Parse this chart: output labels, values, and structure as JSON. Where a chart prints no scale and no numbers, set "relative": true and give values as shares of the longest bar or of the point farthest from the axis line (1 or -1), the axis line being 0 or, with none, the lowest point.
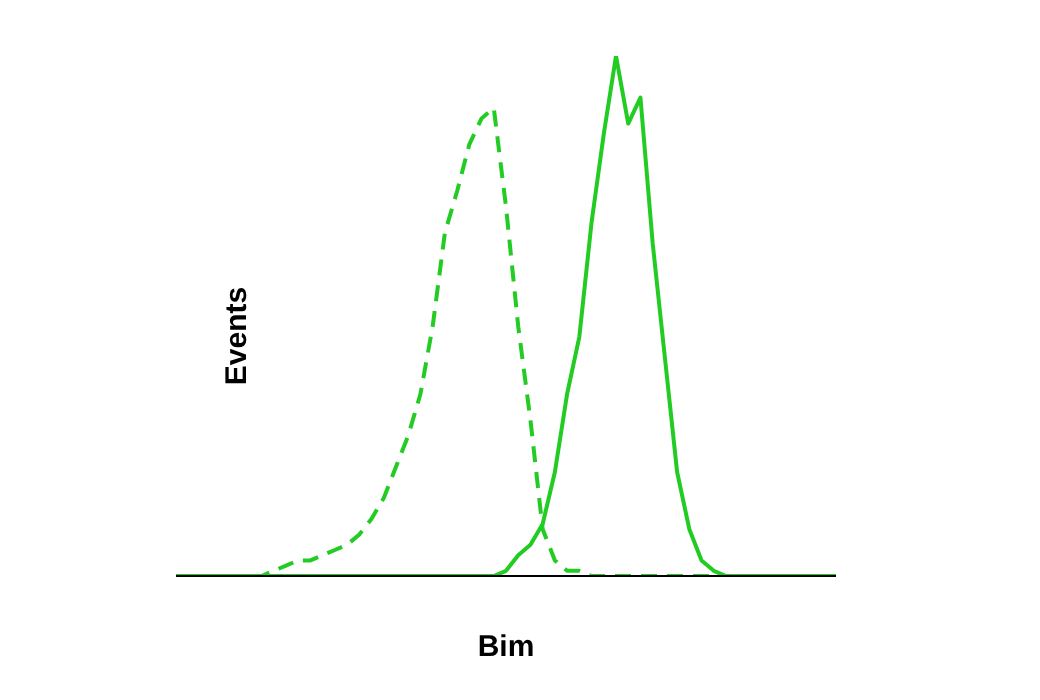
{
  "chart_data": {
    "type": "line",
    "relative": true,
    "xlabel": "Bim",
    "ylabel": "Events",
    "marker": "none",
    "grid": false,
    "legend": false,
    "categories": [
      null,
      null,
      null,
      null,
      null,
      null,
      null,
      null,
      null,
      null,
      null,
      null,
      null,
      null,
      null,
      null,
      null,
      null,
      null,
      null,
      null,
      null,
      null,
      null,
      null,
      null,
      null,
      null,
      null,
      null,
      null,
      null,
      null,
      null,
      null,
      null,
      null,
      null,
      null,
      null,
      null,
      null,
      null,
      null,
      null,
      null,
      null,
      null,
      null,
      null,
      null,
      null,
      null,
      null,
      null
    ],
    "series": [
      {
        "color": "#22cc22",
        "line_style": "dashed",
        "values": [
          0,
          0,
          0,
          0,
          0,
          0,
          0,
          0,
          0.01,
          0.02,
          0.03,
          0.03,
          0.04,
          0.05,
          0.06,
          0.08,
          0.11,
          0.15,
          0.21,
          0.27,
          0.35,
          0.48,
          0.66,
          0.74,
          0.83,
          0.88,
          0.9,
          0.71,
          0.48,
          0.3,
          0.09,
          0.03,
          0.01,
          0.01,
          0,
          0,
          0,
          0,
          0,
          0,
          0,
          0,
          0,
          0,
          0,
          0,
          0,
          0,
          0,
          0,
          0,
          0,
          0,
          0,
          0
        ]
      },
      {
        "color": "#22cc22",
        "line_style": "solid",
        "values": [
          0,
          0,
          0,
          0,
          0,
          0,
          0,
          0,
          0,
          0,
          0,
          0,
          0,
          0,
          0,
          0,
          0,
          0,
          0,
          0,
          0,
          0,
          0,
          0,
          0,
          0,
          0,
          0.01,
          0.04,
          0.06,
          0.1,
          0.2,
          0.35,
          0.46,
          0.68,
          0.85,
          1,
          0.87,
          0.92,
          0.64,
          0.42,
          0.2,
          0.09,
          0.03,
          0.01,
          0,
          0,
          0,
          0,
          0,
          0,
          0,
          0,
          0,
          0
        ]
      }
    ]
  }
}
